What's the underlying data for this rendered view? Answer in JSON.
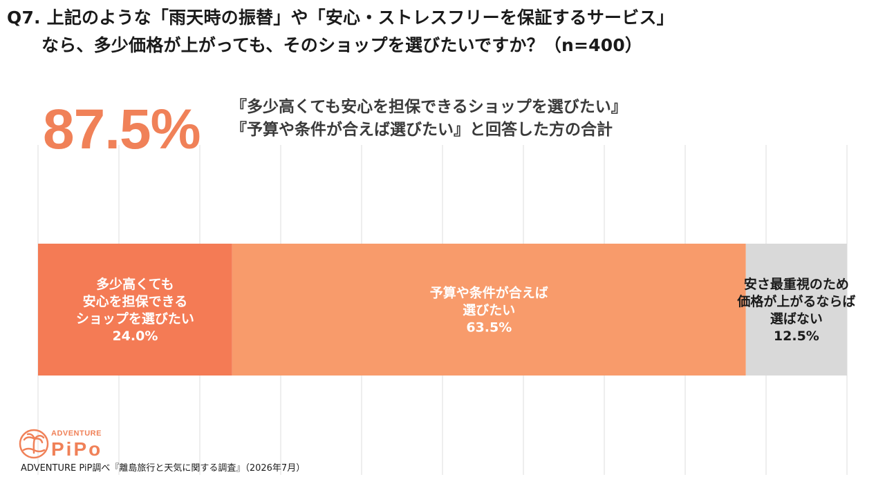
{
  "title": {
    "line1": "Q7. 上記のような「雨天時の振替」や「安心・ストレスフリーを保証するサービス」",
    "line2": "なら、多少価格が上がっても、そのショップを選びたいですか？（n=400）"
  },
  "highlight": {
    "value": "87.5%",
    "caption_line1": "『多少高くても安心を担保できるショップを選びたい』",
    "caption_line2": "『予算や条件が合えば選びたい』と回答した方の合計"
  },
  "chart_data": {
    "type": "bar",
    "orientation": "horizontal-stacked-100",
    "xlim": [
      0,
      100
    ],
    "grid": true,
    "series": [
      {
        "name": "多少高くても安心を担保できるショップを選びたい",
        "label_lines": [
          "多少高くても",
          "安心を担保できる",
          "ショップを選びたい"
        ],
        "value": 24.0,
        "value_label": "24.0%",
        "color": "#f47b55",
        "text_color": "#ffffff"
      },
      {
        "name": "予算や条件が合えば選びたい",
        "label_lines": [
          "予算や条件が合えば",
          "選びたい"
        ],
        "value": 63.5,
        "value_label": "63.5%",
        "color": "#f89b6b",
        "text_color": "#ffffff"
      },
      {
        "name": "安さ最重視のため価格が上がるならば選ばない",
        "label_lines": [
          "安さ最重視のため",
          "価格が上がるならば",
          "選ばない"
        ],
        "value": 12.5,
        "value_label": "12.5%",
        "color": "#d9d9d9",
        "text_color": "#1a1a1a"
      }
    ]
  },
  "logo": {
    "top_text": "ADVENTURE",
    "main_text": "PiPo",
    "icon": "palm-tree-sun-icon",
    "color": "#f08158"
  },
  "source": "ADVENTURE PiP調べ『離島旅行と天気に関する調査』（2026年7月）"
}
